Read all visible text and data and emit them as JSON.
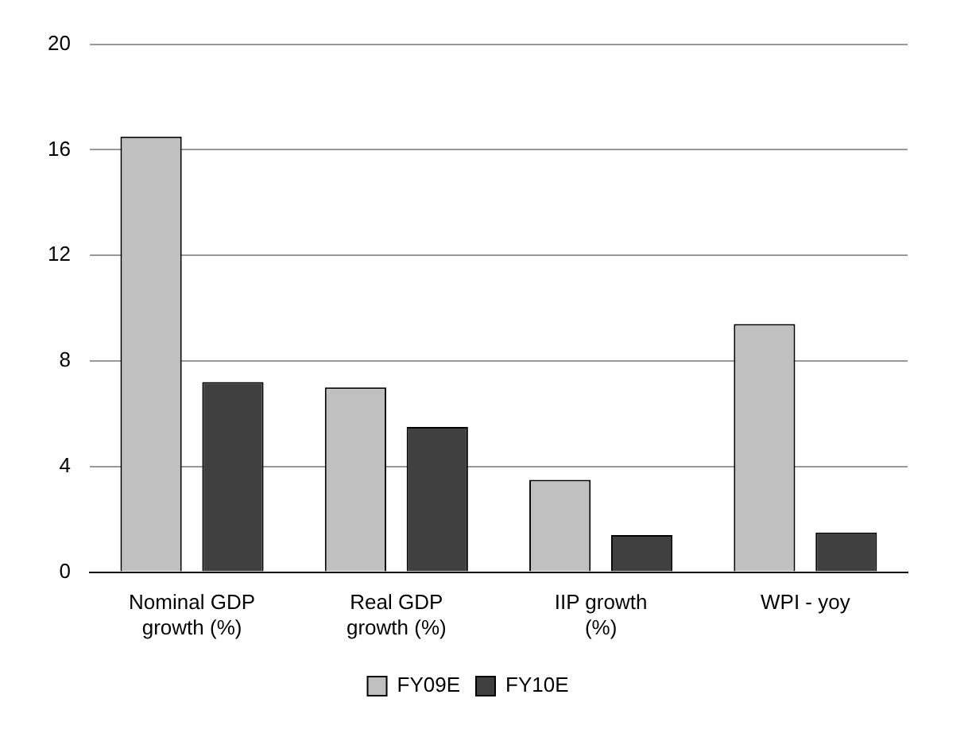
{
  "chart_data": {
    "type": "bar",
    "categories": [
      "Nominal GDP growth (%)",
      "Real GDP growth (%)",
      "IIP growth (%)",
      "WPI - yoy"
    ],
    "series": [
      {
        "name": "FY09E",
        "color": "#c0c0c0",
        "values": [
          16.5,
          7.0,
          3.5,
          9.4
        ]
      },
      {
        "name": "FY10E",
        "color": "#404040",
        "values": [
          7.2,
          5.5,
          1.4,
          1.5
        ]
      }
    ],
    "ylim": [
      0,
      20
    ],
    "yticks": [
      0,
      4,
      8,
      12,
      16,
      20
    ],
    "grid": "y",
    "legend": "bottom"
  }
}
